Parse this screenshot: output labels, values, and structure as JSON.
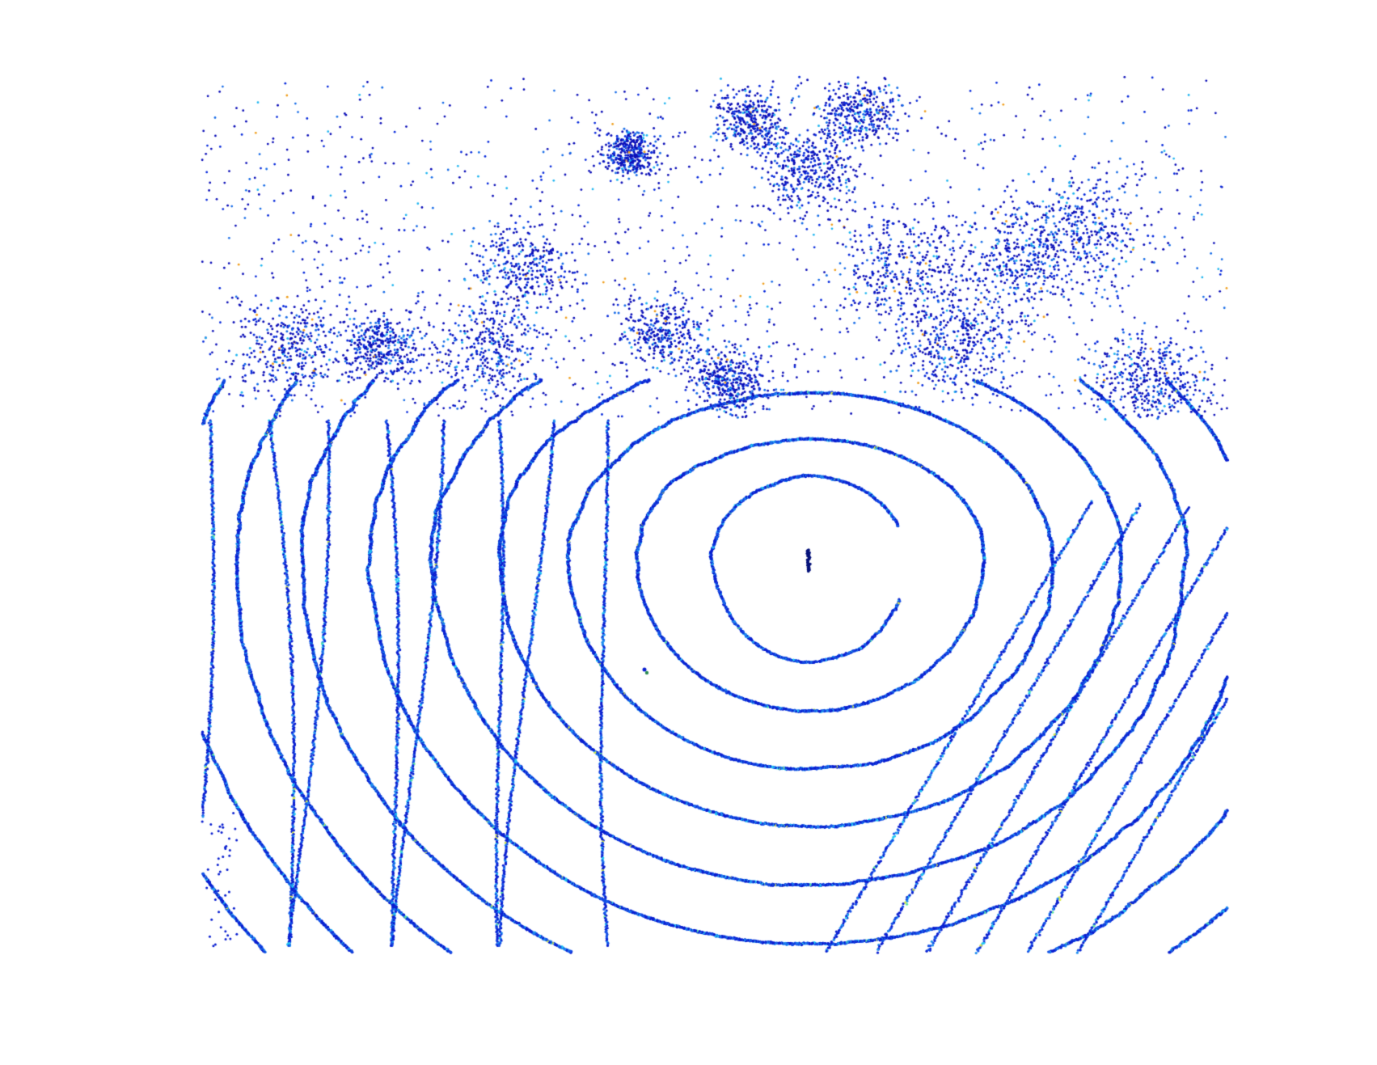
{
  "scene": {
    "kind": "lidar-point-cloud-top-view",
    "background": "#ffffff",
    "colormap": [
      "#00008f",
      "#0000ff",
      "#0080ff",
      "#00ffff",
      "#80ff80",
      "#ffff00",
      "#ff8000",
      "#ff0000"
    ],
    "dominant_colors": [
      "#0a1fd0",
      "#1a5fe8",
      "#2aa0f0"
    ],
    "features": [
      "concentric-scan-rings",
      "vegetation-clutter",
      "sensor-origin-marker"
    ]
  }
}
